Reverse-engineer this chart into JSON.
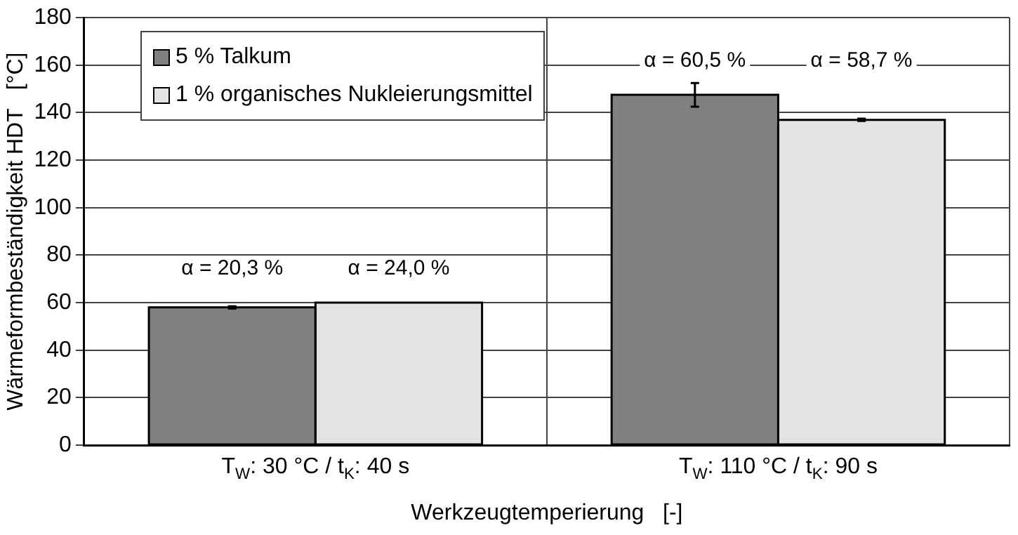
{
  "chart_data": {
    "type": "bar",
    "xlabel": "Werkzeugtemperierung   [-]",
    "ylabel": "Wärmeformbeständigkeit HDT   [°C]",
    "categories": [
      "T$_{W}$: 30 °C / t$_{K}$: 40 s",
      "T$_{W}$: 110 °C / t$_{K}$: 90 s"
    ],
    "series": [
      {
        "name": "5 % Talkum",
        "color": "#808080",
        "values": [
          58,
          147.5
        ],
        "errors": [
          0.5,
          5
        ]
      },
      {
        "name": "1 % organisches Nukleierungsmittel",
        "color": "#e3e3e3",
        "values": [
          60,
          137
        ],
        "errors": [
          null,
          0.5
        ]
      }
    ],
    "ylim": [
      0,
      180
    ],
    "yticks": [
      0,
      20,
      40,
      60,
      80,
      100,
      120,
      140,
      160,
      180
    ],
    "grid": true,
    "legend": "top left",
    "annotations": [
      "α = 20,3 %",
      "α = 24,0 %",
      "α = 60,5 %",
      "α = 58,7 %"
    ]
  }
}
